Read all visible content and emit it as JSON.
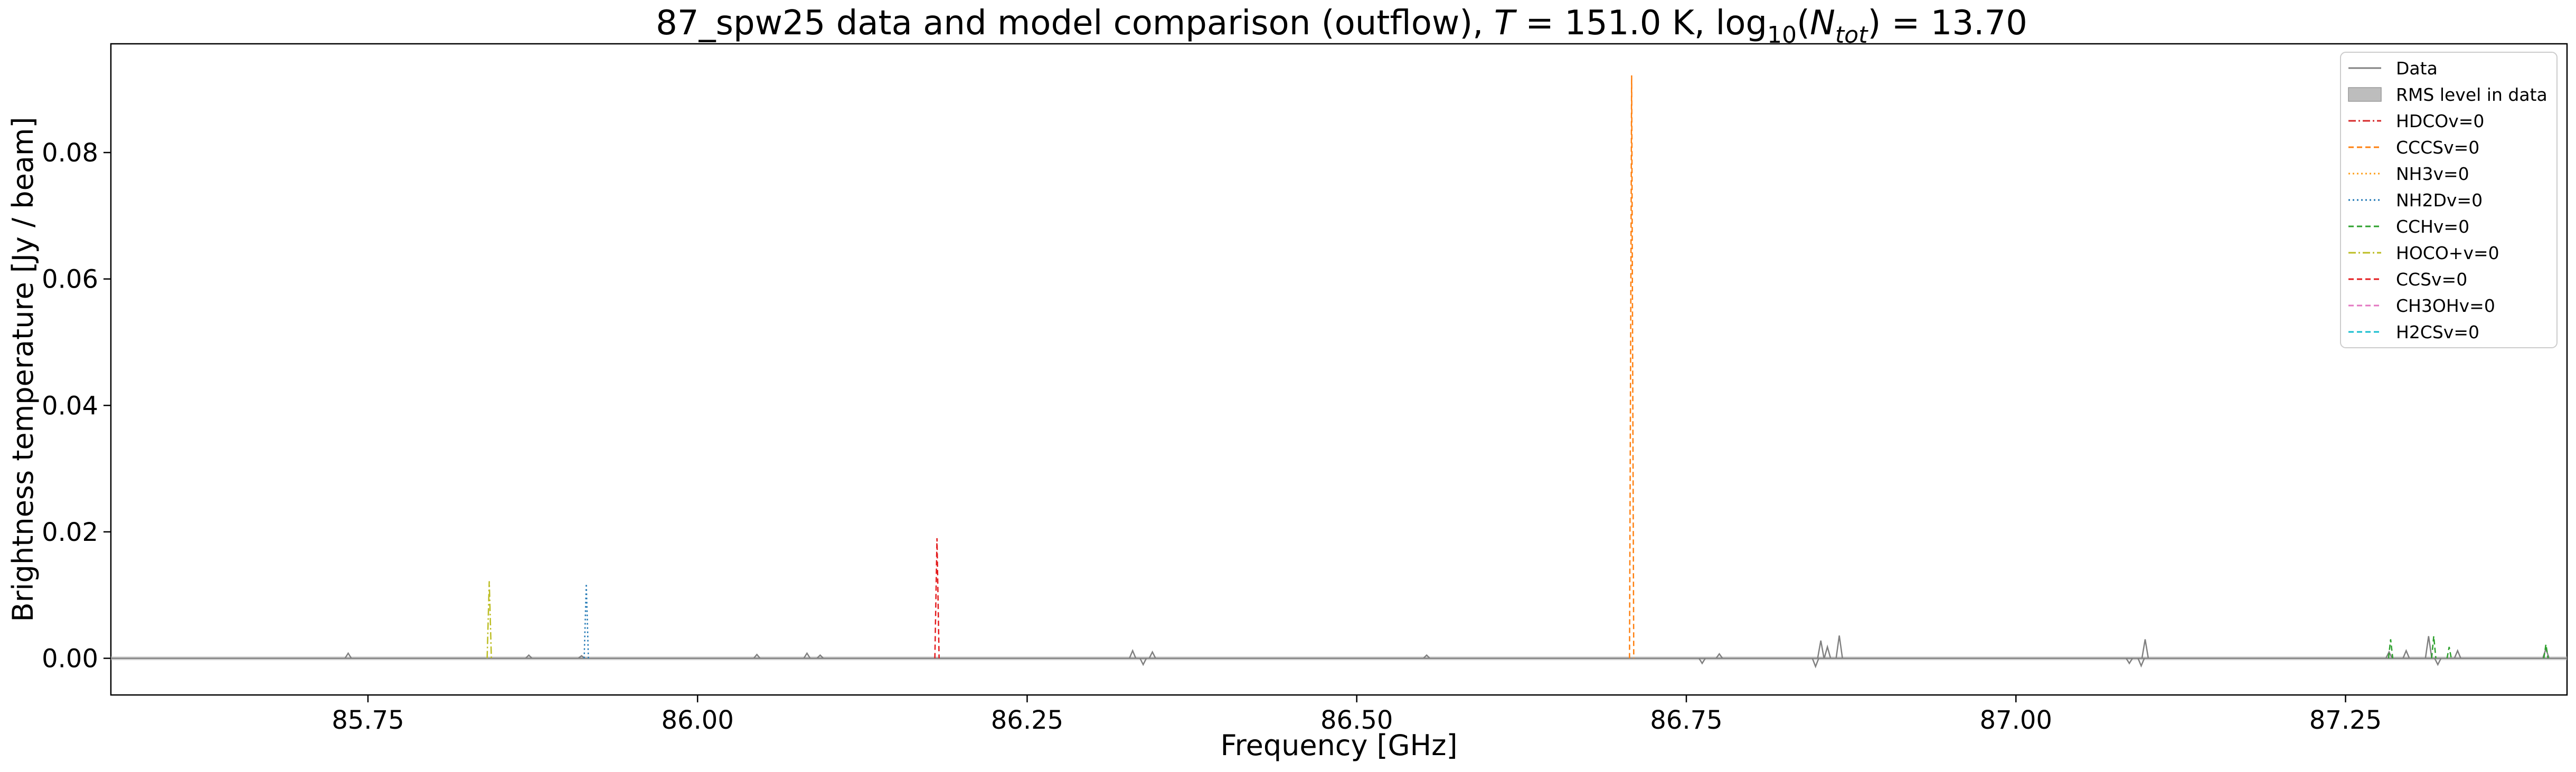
{
  "chart_data": {
    "type": "line",
    "title_parts": {
      "prefix": "87_spw25 data and model comparison (outflow), ",
      "t_symbol": "T",
      "t_value": " = 151.0 K, log",
      "log_base": "10",
      "n_open": "(",
      "n_symbol": "N",
      "n_sub": "tot",
      "n_value": ") = 13.70"
    },
    "xlabel": "Frequency [GHz]",
    "ylabel": "Brightness temperature [Jy / beam]",
    "xlim": [
      85.555,
      87.418
    ],
    "ylim": [
      -0.0058,
      0.0972
    ],
    "xticks": [
      85.75,
      86.0,
      86.25,
      86.5,
      86.75,
      87.0,
      87.25
    ],
    "xtick_labels": [
      "85.75",
      "86.00",
      "86.25",
      "86.50",
      "86.75",
      "87.00",
      "87.25"
    ],
    "yticks": [
      0.0,
      0.02,
      0.04,
      0.06,
      0.08
    ],
    "ytick_labels": [
      "0.00",
      "0.02",
      "0.04",
      "0.06",
      "0.08"
    ],
    "grid": false,
    "legend_position": "upper right",
    "legend": [
      {
        "label": "Data",
        "color": "#808080",
        "style": "solid",
        "kind": "line"
      },
      {
        "label": "RMS level in data",
        "color": "#bdbdbd",
        "style": "fill",
        "kind": "patch"
      },
      {
        "label": "HDCOv=0",
        "color": "#d62728",
        "style": "dashdot",
        "kind": "line"
      },
      {
        "label": "CCCSv=0",
        "color": "#ff7f0e",
        "style": "dashed",
        "kind": "line"
      },
      {
        "label": "NH3v=0",
        "color": "#ff9f1a",
        "style": "dotted",
        "kind": "line"
      },
      {
        "label": "NH2Dv=0",
        "color": "#1f77b4",
        "style": "dotted",
        "kind": "line"
      },
      {
        "label": "CCHv=0",
        "color": "#2ca02c",
        "style": "dashed",
        "kind": "line"
      },
      {
        "label": "HOCO+v=0",
        "color": "#bcbd22",
        "style": "dashdot",
        "kind": "line"
      },
      {
        "label": "CCSv=0",
        "color": "#e31a1c",
        "style": "dashed",
        "kind": "line"
      },
      {
        "label": "CH3OHv=0",
        "color": "#e377c2",
        "style": "dashed",
        "kind": "line"
      },
      {
        "label": "H2CSv=0",
        "color": "#17becf",
        "style": "dashed",
        "kind": "line"
      }
    ],
    "rms_level": 0.0003,
    "model_peaks": [
      {
        "series": "HOCO+v=0",
        "x": 85.842,
        "y": 0.0122,
        "color": "#bcbd22",
        "style": "dashdot"
      },
      {
        "series": "NH2Dv=0",
        "x": 85.9156,
        "y": 0.0118,
        "color": "#1f77b4",
        "style": "dotted"
      },
      {
        "series": "CCSv=0",
        "x": 86.1816,
        "y": 0.019,
        "color": "#e31a1c",
        "style": "dashed"
      },
      {
        "series": "CCCSv=0",
        "x": 86.7085,
        "y": 0.0922,
        "color": "#ff7f0e",
        "style": "dashed"
      },
      {
        "series": "CCHv=0",
        "x": 87.2842,
        "y": 0.003,
        "color": "#2ca02c",
        "style": "dashed"
      },
      {
        "series": "CCHv=0",
        "x": 87.3169,
        "y": 0.0035,
        "color": "#2ca02c",
        "style": "dashed"
      },
      {
        "series": "CCHv=0",
        "x": 87.3286,
        "y": 0.0018,
        "color": "#2ca02c",
        "style": "dashed"
      },
      {
        "series": "CCHv=0",
        "x": 87.402,
        "y": 0.0022,
        "color": "#2ca02c",
        "style": "dashed"
      }
    ],
    "data_features": [
      {
        "x": 85.735,
        "y": 0.0008
      },
      {
        "x": 85.872,
        "y": 0.0005
      },
      {
        "x": 85.912,
        "y": 0.0004
      },
      {
        "x": 86.045,
        "y": 0.0006
      },
      {
        "x": 86.083,
        "y": 0.0008
      },
      {
        "x": 86.093,
        "y": 0.0005
      },
      {
        "x": 86.33,
        "y": 0.0012
      },
      {
        "x": 86.338,
        "y": -0.001
      },
      {
        "x": 86.345,
        "y": 0.001
      },
      {
        "x": 86.553,
        "y": 0.0005
      },
      {
        "x": 86.762,
        "y": -0.0008
      },
      {
        "x": 86.775,
        "y": 0.0007
      },
      {
        "x": 86.852,
        "y": 0.0028
      },
      {
        "x": 86.848,
        "y": -0.0013
      },
      {
        "x": 86.857,
        "y": 0.0018
      },
      {
        "x": 86.866,
        "y": 0.0036
      },
      {
        "x": 87.086,
        "y": -0.0008
      },
      {
        "x": 87.098,
        "y": 0.003
      },
      {
        "x": 87.095,
        "y": -0.0012
      },
      {
        "x": 87.283,
        "y": 0.001
      },
      {
        "x": 87.296,
        "y": 0.0012
      },
      {
        "x": 87.313,
        "y": 0.0035
      },
      {
        "x": 87.32,
        "y": -0.001
      },
      {
        "x": 87.335,
        "y": 0.0012
      },
      {
        "x": 87.402,
        "y": 0.0015
      }
    ]
  }
}
